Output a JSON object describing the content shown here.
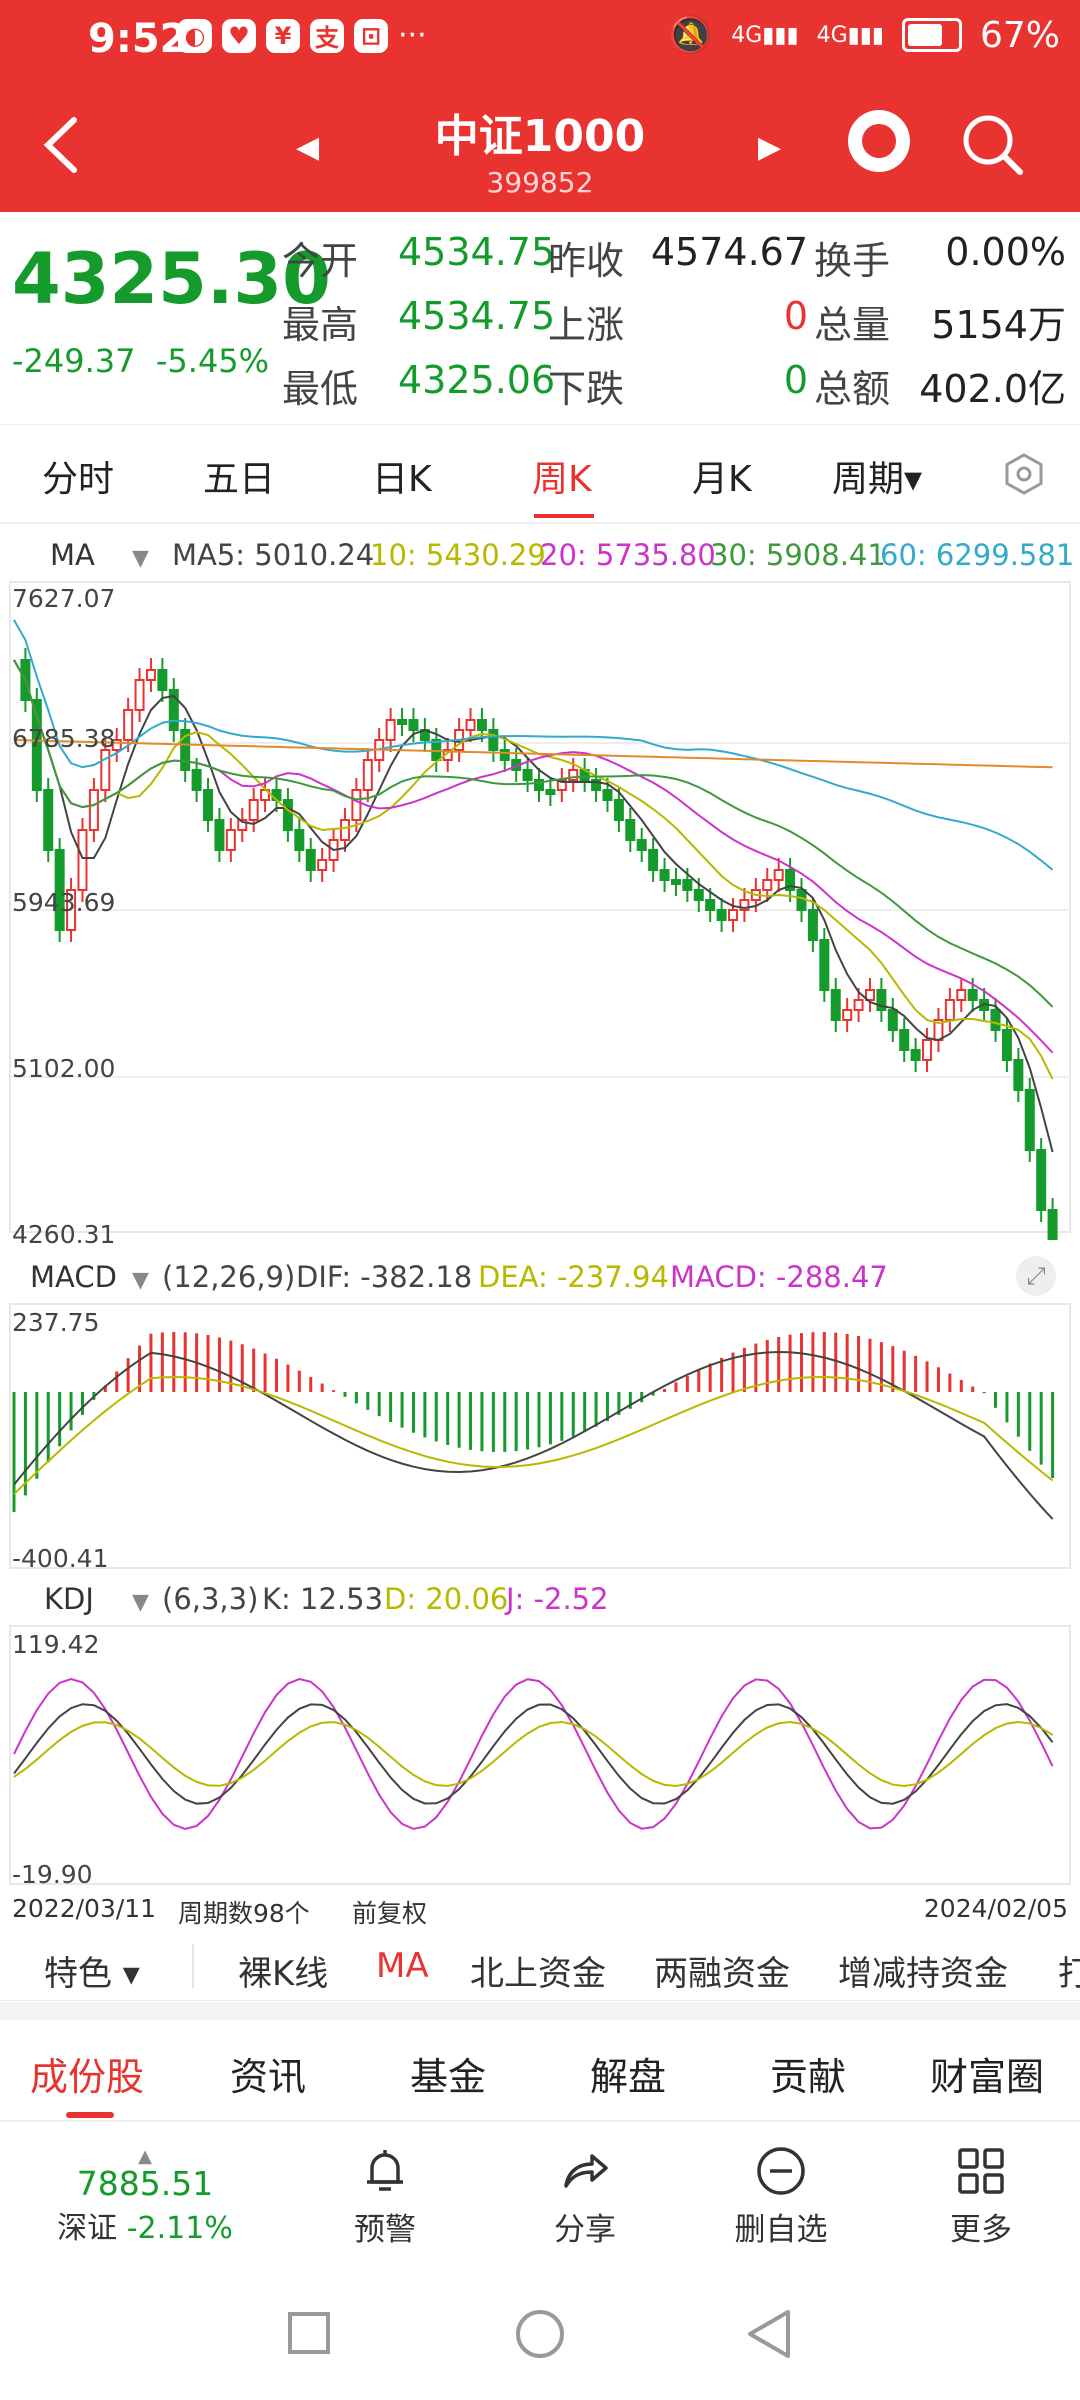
{
  "status": {
    "time": "9:52",
    "battery": "67%",
    "network1": "4G",
    "network2": "4G",
    "apps": [
      "◐",
      "♥",
      "¥",
      "支",
      "⊡"
    ],
    "more": "···"
  },
  "header": {
    "title": "中证1000",
    "code": "399852"
  },
  "quote": {
    "price": "4325.30",
    "change": "-249.37",
    "change_pct": "-5.45%",
    "rows": [
      {
        "l1": "今开",
        "v1": "4534.75",
        "l2": "昨收",
        "v2": "4574.67",
        "l3": "换手",
        "v3": "0.00%"
      },
      {
        "l1": "最高",
        "v1": "4534.75",
        "l2": "上涨",
        "v2": "0",
        "l3": "总量",
        "v3": "5154万"
      },
      {
        "l1": "最低",
        "v1": "4325.06",
        "l2": "下跌",
        "v2": "0",
        "l3": "总额",
        "v3": "402.0亿"
      }
    ]
  },
  "periods": [
    {
      "label": "分时",
      "active": false
    },
    {
      "label": "五日",
      "active": false
    },
    {
      "label": "日K",
      "active": false
    },
    {
      "label": "周K",
      "active": true
    },
    {
      "label": "月K",
      "active": false
    },
    {
      "label": "周期▾",
      "active": false
    }
  ],
  "ma": {
    "title": "MA",
    "ma5": "MA5: 5010.24",
    "ma10": "10: 5430.29",
    "ma20": "20: 5735.80",
    "ma30": "30: 5908.41",
    "ma60": "60: 6299.581"
  },
  "price_axis": [
    "7627.07",
    "6785.38",
    "5943.69",
    "5102.00",
    "4260.31"
  ],
  "macd": {
    "title": "MACD",
    "params": "(12,26,9)",
    "dif": "DIF: -382.18",
    "dea": "DEA: -237.94",
    "macd": "MACD: -288.47",
    "axis_top": "237.75",
    "axis_bottom": "-400.41"
  },
  "kdj": {
    "title": "KDJ",
    "params": "(6,3,3)",
    "k": "K: 12.53",
    "d": "D: 20.06",
    "j": "J: -2.52",
    "axis_top": "119.42",
    "axis_bottom": "-19.90"
  },
  "datebar": {
    "start": "2022/03/11",
    "count": "周期数98个",
    "adjust": "前复权",
    "end": "2024/02/05"
  },
  "features": [
    "特色 ▾",
    "裸K线",
    "MA",
    "北上资金",
    "两融资金",
    "增减持资金",
    "打"
  ],
  "bottom_tabs": [
    "成份股",
    "资讯",
    "基金",
    "解盘",
    "贡献",
    "财富圈"
  ],
  "toolbar": {
    "index_value": "7885.51",
    "index_name": "深证",
    "index_change": "-2.11%",
    "items": [
      "预警",
      "分享",
      "删自选",
      "更多"
    ]
  },
  "colors": {
    "red": "#e83330",
    "green": "#159b2b",
    "ma5": "#444444",
    "ma10": "#b8b800",
    "ma20": "#cc33cc",
    "ma30": "#3c9a3c",
    "ma60": "#33aacc"
  }
}
